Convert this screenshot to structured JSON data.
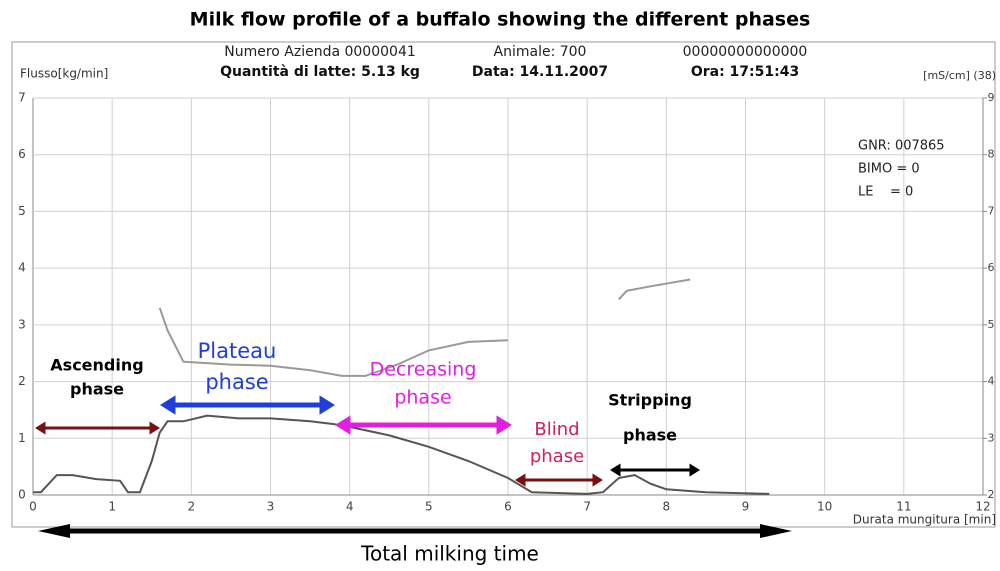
{
  "chart_data": {
    "type": "line",
    "title": "Milk flow profile of a buffalo showing the different phases",
    "header": [
      "Numero Azienda 00000041",
      "Animale: 700",
      "00000000000000"
    ],
    "header_bold": [
      "Quantità di latte: 5.13 kg",
      "Data: 14.11.2007",
      "Ora: 17:51:43"
    ],
    "y_label": "Flusso[kg/min]",
    "y2_label": "[mS/cm] (38)",
    "x_label": "Durata mungitura [min]",
    "info": [
      "GNR: 007865",
      "BIMO = 0",
      "LE    = 0"
    ],
    "footer": "Total milking time",
    "xlim": [
      0,
      12
    ],
    "xticks": [
      0,
      1,
      2,
      3,
      4,
      5,
      6,
      7,
      8,
      9,
      10,
      11,
      12
    ],
    "ylim": [
      0,
      7
    ],
    "yticks": [
      0,
      1,
      2,
      3,
      4,
      5,
      6,
      7
    ],
    "y2lim": [
      2,
      9
    ],
    "y2ticks": [
      2,
      3,
      4,
      5,
      6,
      7,
      8,
      9
    ],
    "grid": true,
    "series": [
      {
        "color": "#555555",
        "x": [
          0,
          0.1,
          0.3,
          0.5,
          0.8,
          1.1,
          1.2,
          1.35,
          1.5,
          1.6,
          1.7,
          1.9,
          2.2,
          2.6,
          3.0,
          3.5,
          3.8,
          4.0,
          4.5,
          5.0,
          5.5,
          6.0,
          6.3,
          7.0,
          7.2,
          7.4,
          7.6,
          7.8,
          8.0,
          8.5,
          9.3
        ],
        "values": [
          0.05,
          0.05,
          0.35,
          0.35,
          0.28,
          0.25,
          0.05,
          0.05,
          0.6,
          1.1,
          1.3,
          1.3,
          1.4,
          1.35,
          1.35,
          1.3,
          1.25,
          1.2,
          1.05,
          0.85,
          0.6,
          0.3,
          0.05,
          0.02,
          0.05,
          0.3,
          0.35,
          0.2,
          0.1,
          0.05,
          0.02
        ]
      },
      {
        "color": "#999999",
        "axis": "y2",
        "x": [
          1.6,
          1.7,
          1.9,
          2.5,
          3.0,
          3.5,
          3.9,
          4.2,
          4.6,
          5.0,
          5.5,
          6.0,
          6.7,
          7.4,
          7.5,
          7.8,
          8.3
        ],
        "values": [
          5.3,
          4.9,
          4.35,
          4.3,
          4.28,
          4.2,
          4.1,
          4.1,
          4.3,
          4.55,
          4.7,
          4.73,
          null,
          5.45,
          5.6,
          5.68,
          5.8
        ]
      }
    ],
    "annotations": [
      {
        "lines": [
          "Ascending",
          "phase"
        ],
        "color": "#000000",
        "arrow_color": "#7a1010"
      },
      {
        "lines": [
          "Plateau",
          "phase"
        ],
        "color": "#1f3fd6",
        "arrow_color": "#1f3fd6"
      },
      {
        "lines": [
          "Decreasing",
          "phase"
        ],
        "color": "#e020e0",
        "arrow_color": "#e020e0"
      },
      {
        "lines": [
          "Blind",
          "phase"
        ],
        "color": "#d02060",
        "arrow_color": "#7a1010"
      },
      {
        "lines": [
          "Stripping",
          "phase"
        ],
        "color": "#000000",
        "arrow_color": "#000000"
      }
    ]
  }
}
